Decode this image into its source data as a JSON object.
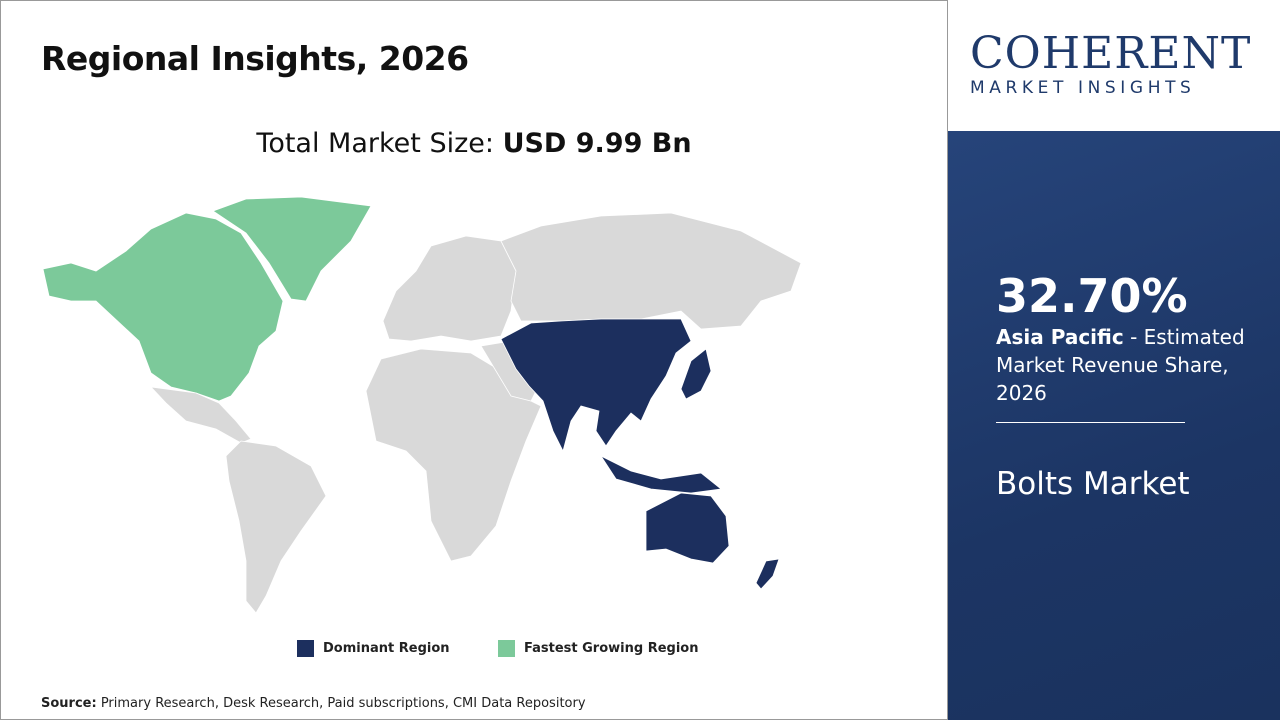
{
  "header": {
    "title": "Regional Insights, 2026"
  },
  "market_size": {
    "label": "Total Market Size: ",
    "value": "USD 9.99 Bn"
  },
  "logo": {
    "name": "COHERENT",
    "tagline": "MARKET INSIGHTS"
  },
  "highlight": {
    "share": "32.70%",
    "region": "Asia Pacific",
    "description": " - Estimated Market Revenue Share, 2026",
    "market": "Bolts Market"
  },
  "legend": {
    "items": [
      "Dominant Region",
      "Fastest Growing Region"
    ]
  },
  "source": {
    "label": "Source:",
    "text": " Primary Research, Desk Research, Paid subscriptions, CMI Data Repository"
  }
}
